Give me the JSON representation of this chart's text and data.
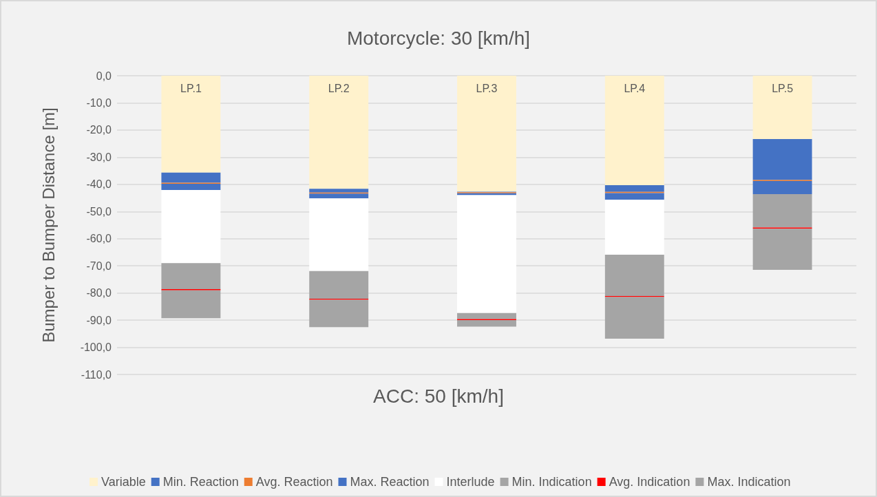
{
  "chart_data": {
    "type": "bar",
    "title": "Motorcycle: 30 [km/h]",
    "xlabel": "ACC: 50 [km/h]",
    "ylabel": "Bumper to Bumper Distance [m]",
    "categories": [
      "LP.1",
      "LP.2",
      "LP.3",
      "LP.4",
      "LP.5"
    ],
    "stacked": true,
    "series": [
      {
        "name": "Variable",
        "color": "#fff2cc",
        "values": [
          -35.7,
          -41.6,
          -42.7,
          -40.3,
          -23.3
        ]
      },
      {
        "name": "Min. Reaction",
        "color": "#4472c4",
        "values": [
          -3.7,
          -1.4,
          -0.2,
          -2.5,
          -15.1
        ]
      },
      {
        "name": "Avg. Reaction",
        "color": "#ed7d31",
        "values": [
          -0.4,
          -0.4,
          -0.4,
          -0.4,
          -0.4
        ]
      },
      {
        "name": "Max. Reaction",
        "color": "#4472c4",
        "values": [
          -2.3,
          -1.8,
          -0.7,
          -2.5,
          -4.8
        ]
      },
      {
        "name": "Interlude",
        "color": "#ffffff",
        "values": [
          -26.9,
          -26.7,
          -43.4,
          -20.2,
          0
        ]
      },
      {
        "name": "Min. Indication",
        "color": "#a5a5a5",
        "values": [
          -9.6,
          -10.2,
          -2.2,
          -15.2,
          -12.3
        ]
      },
      {
        "name": "Avg. Indication",
        "color": "#ff0000",
        "values": [
          -0.4,
          -0.4,
          -0.4,
          -0.4,
          -0.4
        ]
      },
      {
        "name": "Max. Indication",
        "color": "#a5a5a5",
        "values": [
          -10.3,
          -10.1,
          -2.4,
          -15.3,
          -15.2
        ]
      }
    ],
    "ylim": [
      -110,
      0
    ],
    "yticks": [
      {
        "value": 0,
        "label": "0,0"
      },
      {
        "value": -10,
        "label": "-10,0"
      },
      {
        "value": -20,
        "label": "-20,0"
      },
      {
        "value": -30,
        "label": "-30,0"
      },
      {
        "value": -40,
        "label": "-40,0"
      },
      {
        "value": -50,
        "label": "-50,0"
      },
      {
        "value": -60,
        "label": "-60,0"
      },
      {
        "value": -70,
        "label": "-70,0"
      },
      {
        "value": -80,
        "label": "-80,0"
      },
      {
        "value": -90,
        "label": "-90,0"
      },
      {
        "value": -100,
        "label": "-100,0"
      },
      {
        "value": -110,
        "label": "-110,0"
      }
    ],
    "grid": "y",
    "legend": "bottom"
  }
}
